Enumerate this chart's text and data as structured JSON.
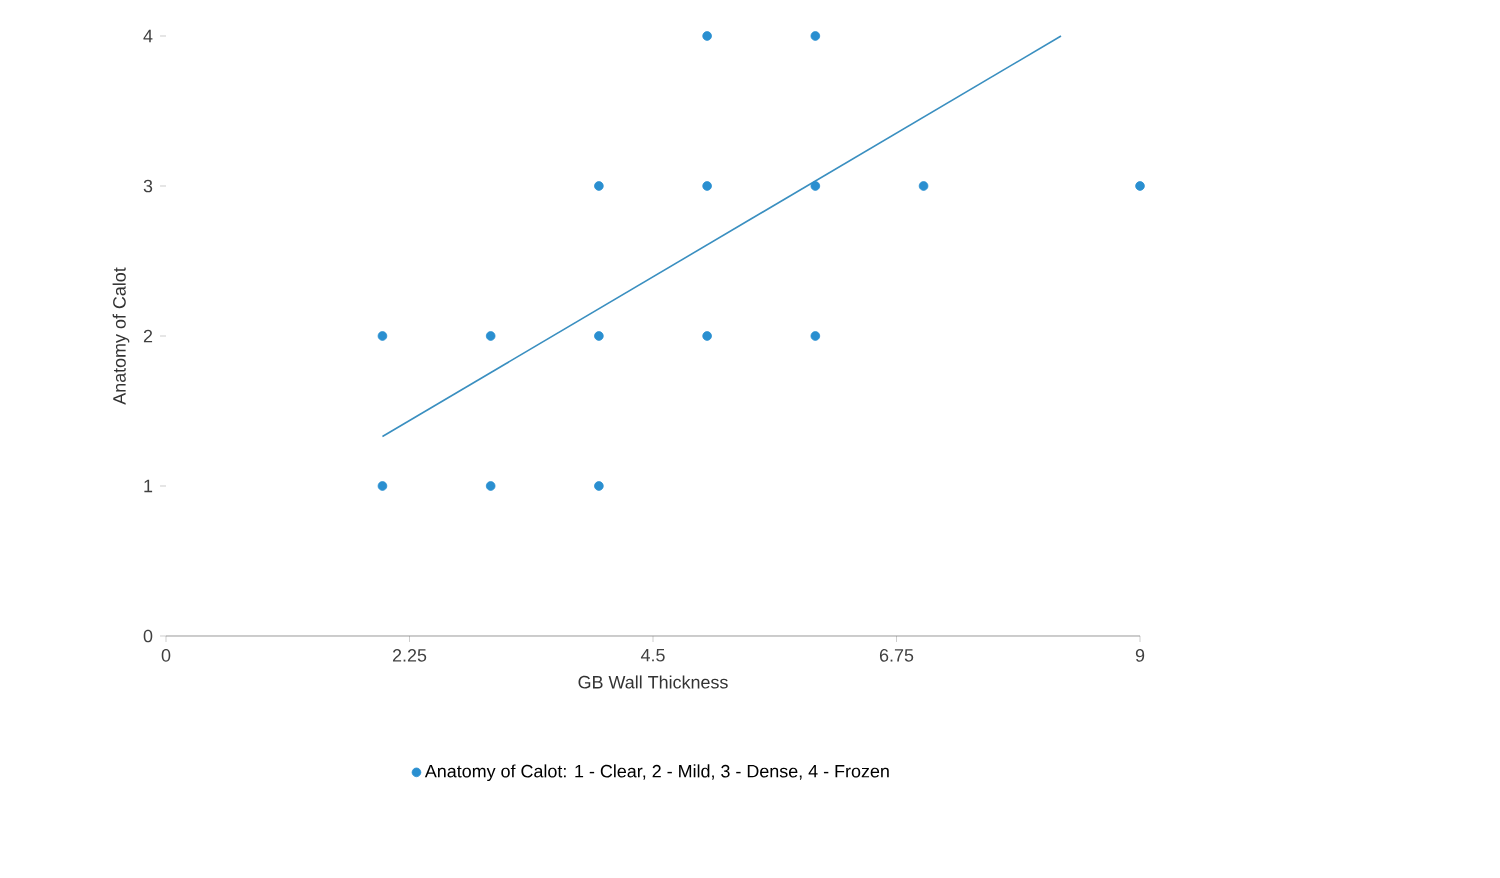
{
  "chart_data": {
    "type": "scatter",
    "xlabel": "GB Wall Thickness",
    "ylabel": "Anatomy of Calot",
    "xlim": [
      0,
      9
    ],
    "ylim": [
      0,
      4
    ],
    "xticks": [
      0,
      2.25,
      4.5,
      6.75,
      9
    ],
    "yticks": [
      0,
      1,
      2,
      3,
      4
    ],
    "grid": false,
    "legend": "bottom",
    "marker": "circle",
    "series": [
      {
        "name": "Anatomy of Calot: 1 - Clear, 2 - Mild, 3 - Dense, 4 - Frozen",
        "color": "#2a8fd0",
        "x": [
          2,
          3,
          4,
          4,
          5,
          5,
          5,
          6,
          6,
          6,
          7,
          9,
          2,
          3,
          4
        ],
        "values": [
          2,
          2,
          3,
          2,
          4,
          3,
          2,
          4,
          3,
          2,
          3,
          3,
          1,
          1,
          1
        ]
      },
      {
        "type": "line",
        "color": "#3a8fc0",
        "marker": "none",
        "x": [
          2,
          8.27
        ],
        "values": [
          1.33,
          4.0
        ]
      }
    ]
  }
}
